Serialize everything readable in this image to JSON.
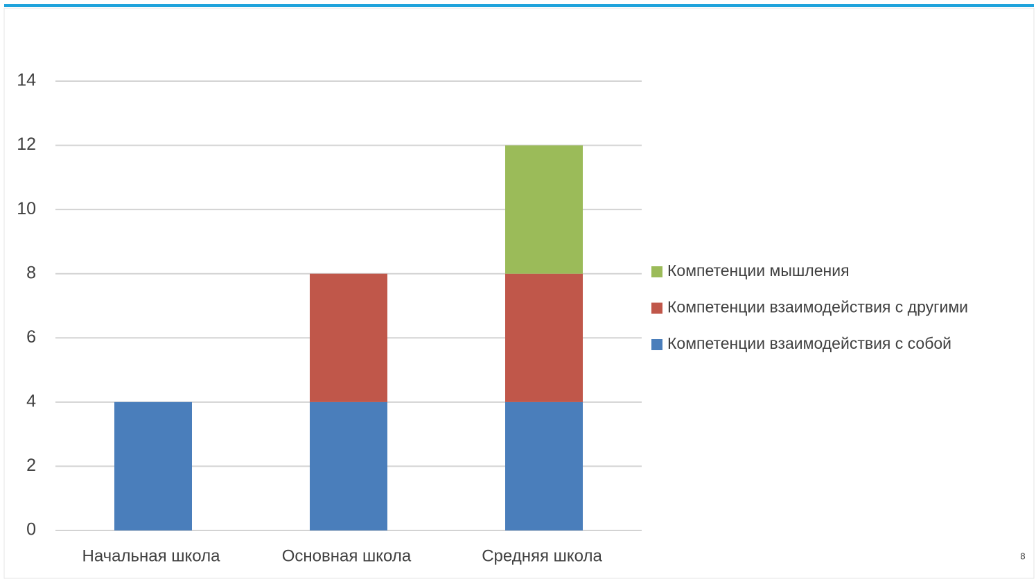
{
  "chart_data": {
    "type": "stacked_bar",
    "categories": [
      "Начальная школа",
      "Основная школа",
      "Средняя школа"
    ],
    "series": [
      {
        "name": "Компетенции взаимодействия с собой",
        "color": "#4a7ebb",
        "values": [
          4,
          4,
          4
        ]
      },
      {
        "name": "Компетенции взаимодействия с другими",
        "color": "#c0574a",
        "values": [
          0,
          4,
          4
        ]
      },
      {
        "name": "Компетенции мышления",
        "color": "#9bbb59",
        "values": [
          0,
          0,
          4
        ]
      }
    ],
    "ylim": [
      0,
      14
    ],
    "yticks": [
      0,
      2,
      4,
      6,
      8,
      10,
      12,
      14
    ],
    "grid": true,
    "legend": "right"
  },
  "page_number": "8"
}
